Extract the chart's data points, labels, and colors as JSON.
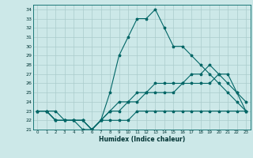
{
  "xlabel": "Humidex (Indice chaleur)",
  "background_color": "#cce8e8",
  "line_color": "#006666",
  "grid_color": "#aacccc",
  "xlim": [
    -0.5,
    23.5
  ],
  "ylim": [
    21,
    34.5
  ],
  "xticks": [
    0,
    1,
    2,
    3,
    4,
    5,
    6,
    7,
    8,
    9,
    10,
    11,
    12,
    13,
    14,
    15,
    16,
    17,
    18,
    19,
    20,
    21,
    22,
    23
  ],
  "yticks": [
    21,
    22,
    23,
    24,
    25,
    26,
    27,
    28,
    29,
    30,
    31,
    32,
    33,
    34
  ],
  "lines": [
    {
      "x": [
        0,
        1,
        2,
        3,
        4,
        5,
        6,
        7,
        8,
        9,
        10,
        11,
        12,
        13,
        14,
        15,
        16,
        17,
        18,
        19,
        20,
        21,
        22,
        23
      ],
      "y": [
        23,
        23,
        23,
        22,
        22,
        21,
        21,
        22,
        25,
        29,
        31,
        33,
        33,
        34,
        32,
        30,
        30,
        29,
        28,
        27,
        26,
        25,
        24,
        23
      ]
    },
    {
      "x": [
        0,
        1,
        2,
        3,
        4,
        5,
        6,
        7,
        8,
        9,
        10,
        11,
        12,
        13,
        14,
        15,
        16,
        17,
        18,
        19,
        20,
        21,
        22,
        23
      ],
      "y": [
        23,
        23,
        22,
        22,
        22,
        22,
        21,
        22,
        23,
        24,
        24,
        25,
        25,
        26,
        26,
        26,
        26,
        27,
        27,
        28,
        27,
        27,
        25,
        23
      ]
    },
    {
      "x": [
        0,
        1,
        2,
        3,
        4,
        5,
        6,
        7,
        8,
        9,
        10,
        11,
        12,
        13,
        14,
        15,
        16,
        17,
        18,
        19,
        20,
        21,
        22,
        23
      ],
      "y": [
        23,
        23,
        22,
        22,
        22,
        22,
        21,
        22,
        23,
        23,
        24,
        24,
        25,
        25,
        25,
        25,
        26,
        26,
        26,
        26,
        27,
        26,
        25,
        24
      ]
    },
    {
      "x": [
        0,
        1,
        2,
        3,
        4,
        5,
        6,
        7,
        8,
        9,
        10,
        11,
        12,
        13,
        14,
        15,
        16,
        17,
        18,
        19,
        20,
        21,
        22,
        23
      ],
      "y": [
        23,
        23,
        22,
        22,
        22,
        22,
        21,
        22,
        22,
        22,
        22,
        23,
        23,
        23,
        23,
        23,
        23,
        23,
        23,
        23,
        23,
        23,
        23,
        23
      ]
    }
  ],
  "figsize": [
    3.2,
    2.0
  ],
  "dpi": 100
}
